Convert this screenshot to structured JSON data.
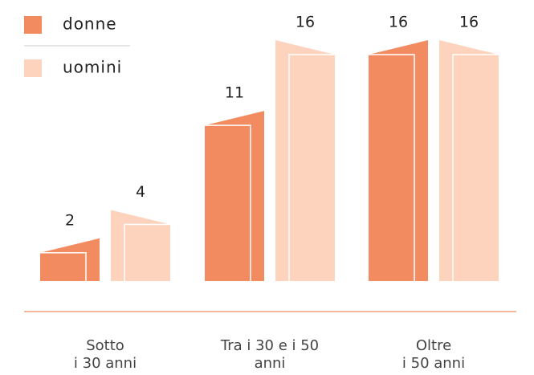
{
  "chart_data": {
    "type": "bar",
    "categories": [
      "Sotto\ni 30 anni",
      "Tra i 30 e i 50\nanni",
      "Oltre\ni 50 anni"
    ],
    "series": [
      {
        "name": "donne",
        "color": "#f28c60",
        "values": [
          2,
          11,
          16
        ]
      },
      {
        "name": "uomini",
        "color": "#fdd3bd",
        "values": [
          4,
          16,
          16
        ]
      }
    ],
    "ylim": [
      0,
      16
    ]
  }
}
